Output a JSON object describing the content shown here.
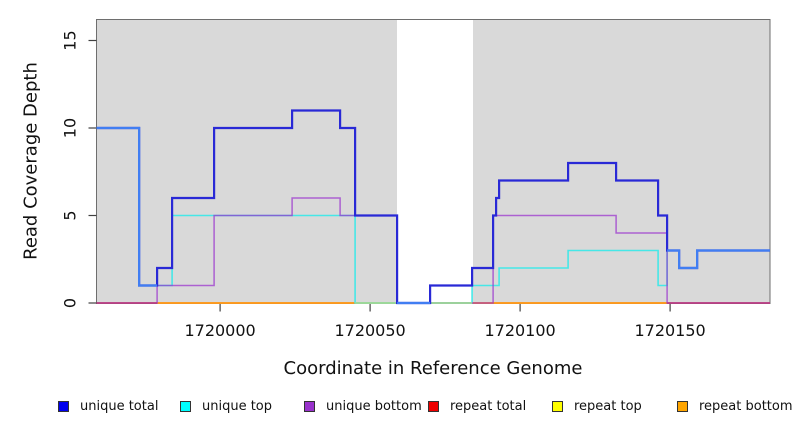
{
  "figure": {
    "background": "#ffffff"
  },
  "axes": {
    "x": {
      "title": "Coordinate in Reference Genome",
      "ticks": [
        1720000,
        1720050,
        1720100,
        1720150
      ],
      "tick_labels": [
        "1720000",
        "1720050",
        "1720100",
        "1720150"
      ],
      "lim": [
        1719958.8,
        1720183.3
      ]
    },
    "y": {
      "title": "Read Coverage Depth",
      "ticks": [
        0,
        5,
        10,
        15
      ],
      "tick_labels": [
        "0",
        "5",
        "10",
        "15"
      ],
      "lim": [
        0,
        16.2
      ]
    }
  },
  "plot": {
    "panel_color": "#d9d9d9",
    "gap_color": "#ffffff",
    "shaded_regions": [
      [
        1719958.8,
        1720059
      ],
      [
        1720084.3,
        1720183.3
      ]
    ],
    "border_color": "#6e6e6e",
    "tick_color": "#404040"
  },
  "chart_data": {
    "type": "line",
    "line_style": "step",
    "title": "",
    "xlabel": "Coordinate in Reference Genome",
    "ylabel": "Read Coverage Depth",
    "xlim": [
      1719958.8,
      1720183.3
    ],
    "ylim": [
      0,
      16.2
    ],
    "grid": false,
    "legend_position": "bottom",
    "series": [
      {
        "name": "unique total",
        "color": "#2929d6",
        "overlap_color": "#417ef2",
        "width": 2.2,
        "steps": [
          {
            "x1": 1719958.8,
            "x2": 1719973,
            "y": 10
          },
          {
            "x1": 1719973,
            "x2": 1719979,
            "y": 1
          },
          {
            "x1": 1719979,
            "x2": 1719984,
            "y": 2
          },
          {
            "x1": 1719984,
            "x2": 1719998,
            "y": 6
          },
          {
            "x1": 1719998,
            "x2": 1720024,
            "y": 10
          },
          {
            "x1": 1720024,
            "x2": 1720040,
            "y": 11
          },
          {
            "x1": 1720040,
            "x2": 1720045,
            "y": 10
          },
          {
            "x1": 1720045,
            "x2": 1720059,
            "y": 5
          },
          {
            "x1": 1720059,
            "x2": 1720070,
            "y": 0
          },
          {
            "x1": 1720070,
            "x2": 1720084,
            "y": 1
          },
          {
            "x1": 1720084,
            "x2": 1720091,
            "y": 2
          },
          {
            "x1": 1720091,
            "x2": 1720092,
            "y": 5
          },
          {
            "x1": 1720092,
            "x2": 1720093,
            "y": 6
          },
          {
            "x1": 1720093,
            "x2": 1720116,
            "y": 7
          },
          {
            "x1": 1720116,
            "x2": 1720132,
            "y": 8
          },
          {
            "x1": 1720132,
            "x2": 1720146,
            "y": 7
          },
          {
            "x1": 1720146,
            "x2": 1720149,
            "y": 5
          },
          {
            "x1": 1720149,
            "x2": 1720153,
            "y": 3
          },
          {
            "x1": 1720153,
            "x2": 1720159,
            "y": 2
          },
          {
            "x1": 1720159,
            "x2": 1720183.3,
            "y": 3
          }
        ]
      },
      {
        "name": "unique top",
        "color": "#46e7e7",
        "width": 1.6,
        "steps": [
          {
            "x1": 1719958.8,
            "x2": 1719973,
            "y": 10
          },
          {
            "x1": 1719973,
            "x2": 1719984,
            "y": 1
          },
          {
            "x1": 1719984,
            "x2": 1720045,
            "y": 5
          },
          {
            "x1": 1720045,
            "x2": 1720084,
            "y": 0
          },
          {
            "x1": 1720084,
            "x2": 1720093,
            "y": 1
          },
          {
            "x1": 1720093,
            "x2": 1720116,
            "y": 2
          },
          {
            "x1": 1720116,
            "x2": 1720146,
            "y": 3
          },
          {
            "x1": 1720146,
            "x2": 1720149,
            "y": 1
          },
          {
            "x1": 1720149,
            "x2": 1720153,
            "y": 3
          },
          {
            "x1": 1720153,
            "x2": 1720159,
            "y": 2
          },
          {
            "x1": 1720159,
            "x2": 1720183.3,
            "y": 3
          }
        ]
      },
      {
        "name": "unique bottom",
        "color": "rgba(154,50,205,0.72)",
        "width": 1.5,
        "steps": [
          {
            "x1": 1719958.8,
            "x2": 1719979,
            "y": 0
          },
          {
            "x1": 1719979,
            "x2": 1719998,
            "y": 1
          },
          {
            "x1": 1719998,
            "x2": 1720024,
            "y": 5
          },
          {
            "x1": 1720024,
            "x2": 1720040,
            "y": 6
          },
          {
            "x1": 1720040,
            "x2": 1720059,
            "y": 5
          },
          {
            "x1": 1720059,
            "x2": 1720091,
            "y": 0
          },
          {
            "x1": 1720091,
            "x2": 1720132,
            "y": 5
          },
          {
            "x1": 1720132,
            "x2": 1720149,
            "y": 4
          },
          {
            "x1": 1720149,
            "x2": 1720183.3,
            "y": 0
          }
        ]
      },
      {
        "name": "repeat total",
        "color": "#dd2222",
        "width": 1.6,
        "steps": [
          {
            "x1": 1719958.8,
            "x2": 1720183.3,
            "y": 0
          }
        ]
      },
      {
        "name": "repeat top",
        "color": "#ffff00",
        "width": 1.4,
        "steps": [
          {
            "x1": 1719958.8,
            "x2": 1720183.3,
            "y": 0
          }
        ]
      },
      {
        "name": "repeat bottom",
        "color": "#ff9f1e",
        "width": 1.8,
        "steps": [
          {
            "x1": 1719979,
            "x2": 1720149,
            "y": 0
          }
        ]
      }
    ],
    "baseline_blend": {
      "x1": 1720045,
      "x2": 1720084,
      "y": 0,
      "color": "#9cdb9c",
      "note": "unique top + repeat top overlap at zero"
    }
  },
  "legend": {
    "items": [
      {
        "label": "unique total",
        "color": "#0000ee"
      },
      {
        "label": "unique top",
        "color": "#00ffff"
      },
      {
        "label": "unique bottom",
        "color": "#9932cc"
      },
      {
        "label": "repeat total",
        "color": "#ee0000"
      },
      {
        "label": "repeat top",
        "color": "#ffff00"
      },
      {
        "label": "repeat bottom",
        "color": "#ffa500"
      }
    ]
  }
}
